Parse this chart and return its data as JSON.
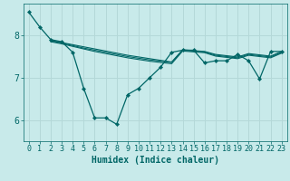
{
  "xlabel": "Humidex (Indice chaleur)",
  "ylabel": "",
  "bg_color": "#c8eaea",
  "grid_color": "#b4d8d8",
  "line_color": "#006666",
  "xlim": [
    -0.5,
    23.5
  ],
  "ylim": [
    5.5,
    8.75
  ],
  "yticks": [
    6,
    7,
    8
  ],
  "xticks": [
    0,
    1,
    2,
    3,
    4,
    5,
    6,
    7,
    8,
    9,
    10,
    11,
    12,
    13,
    14,
    15,
    16,
    17,
    18,
    19,
    20,
    21,
    22,
    23
  ],
  "lines": [
    {
      "x": [
        0,
        1,
        2,
        3,
        4,
        5,
        6,
        7,
        8,
        9,
        10,
        11,
        12,
        13,
        14,
        15,
        16,
        17,
        18,
        19,
        20,
        21,
        22,
        23
      ],
      "y": [
        8.55,
        8.2,
        7.9,
        7.85,
        7.6,
        6.75,
        6.05,
        6.05,
        5.9,
        6.6,
        6.75,
        7.0,
        7.25,
        7.6,
        7.65,
        7.65,
        7.35,
        7.4,
        7.4,
        7.55,
        7.4,
        6.97,
        7.62,
        7.62
      ],
      "marker": true
    },
    {
      "x": [
        2,
        3,
        4,
        5,
        6,
        7,
        8,
        9,
        10,
        11,
        12,
        13,
        14,
        15,
        16,
        17,
        18,
        19,
        20,
        21,
        22,
        23
      ],
      "y": [
        7.88,
        7.83,
        7.78,
        7.73,
        7.68,
        7.63,
        7.58,
        7.53,
        7.49,
        7.45,
        7.41,
        7.37,
        7.66,
        7.64,
        7.62,
        7.55,
        7.52,
        7.49,
        7.57,
        7.54,
        7.51,
        7.62
      ],
      "marker": false
    },
    {
      "x": [
        2,
        3,
        4,
        5,
        6,
        7,
        8,
        9,
        10,
        11,
        12,
        13,
        14,
        15,
        16,
        17,
        18,
        19,
        20,
        21,
        22,
        23
      ],
      "y": [
        7.87,
        7.82,
        7.76,
        7.7,
        7.65,
        7.6,
        7.55,
        7.5,
        7.46,
        7.42,
        7.39,
        7.36,
        7.65,
        7.63,
        7.61,
        7.53,
        7.5,
        7.47,
        7.55,
        7.52,
        7.49,
        7.6
      ],
      "marker": false
    },
    {
      "x": [
        2,
        3,
        4,
        5,
        6,
        7,
        8,
        9,
        10,
        11,
        12,
        13,
        14,
        15,
        16,
        17,
        18,
        19,
        20,
        21,
        22,
        23
      ],
      "y": [
        7.85,
        7.8,
        7.74,
        7.68,
        7.62,
        7.57,
        7.52,
        7.47,
        7.43,
        7.39,
        7.36,
        7.33,
        7.63,
        7.61,
        7.59,
        7.51,
        7.48,
        7.45,
        7.53,
        7.5,
        7.47,
        7.58
      ],
      "marker": false
    }
  ]
}
